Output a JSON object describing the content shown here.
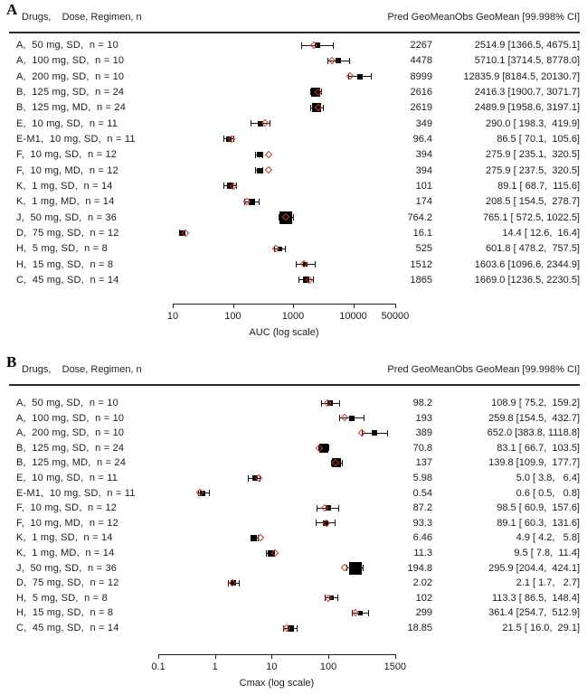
{
  "figure": {
    "background": "#ffffff",
    "text_color": "#1b1b1b",
    "marker_black": "#000000",
    "accent_red": "#c0392b"
  },
  "chart_data": [
    {
      "type": "scatter",
      "subtype": "forest-plot",
      "panel_label": "A",
      "header": {
        "left": "Drugs,    Dose, Regimen, n",
        "pred": "Pred GeoMean",
        "obs": "Obs GeoMean [99.998% CI]"
      },
      "xlabel": "AUC (log scale)",
      "xscale": "log",
      "xlim": [
        10,
        50000
      ],
      "ticks": [
        10,
        100,
        1000,
        10000,
        50000
      ],
      "tick_labels": [
        "10",
        "100",
        "1000",
        "10000",
        "50000"
      ],
      "legend": {
        "black_square": "Obs GeoMean with 99.998% CI",
        "red_diamond": "Pred GeoMean"
      },
      "marker_px_by_n": {
        "8": 5,
        "10": 6,
        "11": 6,
        "12": 6,
        "14": 7,
        "24": 10,
        "36": 14
      },
      "rows": [
        {
          "label": "A,  50 mg, SD,  n = 10",
          "n": 10,
          "pred": 2267,
          "pred_text": "2267",
          "obs": 2514.9,
          "lo": 1366.5,
          "hi": 4675.1,
          "obs_text": "2514.9 [1366.5, 4675.1]"
        },
        {
          "label": "A,  100 mg, SD,  n = 10",
          "n": 10,
          "pred": 4478,
          "pred_text": "4478",
          "obs": 5710.1,
          "lo": 3714.5,
          "hi": 8778.0,
          "obs_text": "5710.1 [3714.5, 8778.0]"
        },
        {
          "label": "A,  200 mg, SD,  n = 10",
          "n": 10,
          "pred": 8999,
          "pred_text": "8999",
          "obs": 12835.9,
          "lo": 8184.5,
          "hi": 20130.7,
          "obs_text": "12835.9 [8184.5, 20130.7]"
        },
        {
          "label": "B,  125 mg, SD,  n = 24",
          "n": 24,
          "pred": 2616,
          "pred_text": "2616",
          "obs": 2416.3,
          "lo": 1900.7,
          "hi": 3071.7,
          "obs_text": "2416.3 [1900.7, 3071.7]"
        },
        {
          "label": "B,  125 mg, MD,  n = 24",
          "n": 24,
          "pred": 2619,
          "pred_text": "2619",
          "obs": 2489.9,
          "lo": 1958.6,
          "hi": 3197.1,
          "obs_text": "2489.9 [1958.6, 3197.1]"
        },
        {
          "label": "E,  10 mg, SD,  n = 11",
          "n": 11,
          "pred": 349,
          "pred_text": "349",
          "obs": 290.0,
          "lo": 198.3,
          "hi": 419.9,
          "obs_text": "290.0 [ 198.3,  419.9]"
        },
        {
          "label": "E-M1,  10 mg, SD,  n = 11",
          "n": 11,
          "pred": 96.4,
          "pred_text": "96.4",
          "obs": 86.5,
          "lo": 70.1,
          "hi": 105.6,
          "obs_text": "86.5 [ 70.1,  105.6]"
        },
        {
          "label": "F,  10 mg, SD,  n = 12",
          "n": 12,
          "pred": 394,
          "pred_text": "394",
          "obs": 275.9,
          "lo": 235.1,
          "hi": 320.5,
          "obs_text": "275.9 [ 235.1,  320.5]"
        },
        {
          "label": "F,  10 mg, MD,  n = 12",
          "n": 12,
          "pred": 394,
          "pred_text": "394",
          "obs": 275.9,
          "lo": 237.5,
          "hi": 320.5,
          "obs_text": "275.9 [ 237.5,  320.5]"
        },
        {
          "label": "K,  1 mg, SD,  n = 14",
          "n": 14,
          "pred": 101,
          "pred_text": "101",
          "obs": 89.1,
          "lo": 68.7,
          "hi": 115.6,
          "obs_text": "89.1 [ 68.7,  115.6]"
        },
        {
          "label": "K,  1 mg, MD,  n = 14",
          "n": 14,
          "pred": 174,
          "pred_text": "174",
          "obs": 208.5,
          "lo": 154.5,
          "hi": 278.7,
          "obs_text": "208.5 [ 154.5,  278.7]"
        },
        {
          "label": "J,  50 mg, SD,  n = 36",
          "n": 36,
          "pred": 764.2,
          "pred_text": "764.2",
          "obs": 765.1,
          "lo": 572.5,
          "hi": 1022.5,
          "obs_text": "765.1 [ 572.5, 1022.5]"
        },
        {
          "label": "D,  75 mg, SD,  n = 12",
          "n": 12,
          "pred": 16.1,
          "pred_text": "16.1",
          "obs": 14.4,
          "lo": 12.6,
          "hi": 16.4,
          "obs_text": "14.4 [ 12.6,  16.4]"
        },
        {
          "label": "H,  5 mg, SD,  n = 8",
          "n": 8,
          "pred": 525,
          "pred_text": "525",
          "obs": 601.8,
          "lo": 478.2,
          "hi": 757.5,
          "obs_text": "601.8 [ 478.2,  757.5]"
        },
        {
          "label": "H,  15 mg, SD,  n = 8",
          "n": 8,
          "pred": 1512,
          "pred_text": "1512",
          "obs": 1603.6,
          "lo": 1096.6,
          "hi": 2344.9,
          "obs_text": "1603.6 [1096.6, 2344.9]"
        },
        {
          "label": "C,  45 mg, SD,  n = 14",
          "n": 14,
          "pred": 1865,
          "pred_text": "1865",
          "obs": 1669.0,
          "lo": 1236.5,
          "hi": 2230.5,
          "obs_text": "1669.0 [1236.5, 2230.5]"
        }
      ]
    },
    {
      "type": "scatter",
      "subtype": "forest-plot",
      "panel_label": "B",
      "header": {
        "left": "Drugs,    Dose, Regimen, n",
        "pred": "Pred GeoMean",
        "obs": "Obs GeoMean [99.998% CI]"
      },
      "xlabel": "Cmax (log scale)",
      "xscale": "log",
      "xlim": [
        0.1,
        1500
      ],
      "ticks": [
        0.1,
        1,
        10,
        100,
        1500
      ],
      "tick_labels": [
        "0.1",
        "1",
        "10",
        "100",
        "1500"
      ],
      "legend": {
        "black_square": "Obs GeoMean with 99.998% CI",
        "red_diamond": "Pred GeoMean"
      },
      "marker_px_by_n": {
        "8": 5,
        "10": 6,
        "11": 6,
        "12": 6,
        "14": 7,
        "24": 10,
        "36": 14
      },
      "rows": [
        {
          "label": "A,  50 mg, SD,  n = 10",
          "n": 10,
          "pred": 98.2,
          "pred_text": "98.2",
          "obs": 108.9,
          "lo": 75.2,
          "hi": 159.2,
          "obs_text": "108.9 [ 75.2,  159.2]"
        },
        {
          "label": "A,  100 mg, SD,  n = 10",
          "n": 10,
          "pred": 193,
          "pred_text": "193",
          "obs": 259.8,
          "lo": 154.5,
          "hi": 432.7,
          "obs_text": "259.8 [154.5,  432.7]"
        },
        {
          "label": "A,  200 mg, SD,  n = 10",
          "n": 10,
          "pred": 389,
          "pred_text": "389",
          "obs": 652.0,
          "lo": 383.8,
          "hi": 1118.8,
          "obs_text": "652.0 [383.8, 1118.8]"
        },
        {
          "label": "B,  125 mg, SD,  n = 24",
          "n": 24,
          "pred": 70.8,
          "pred_text": "70.8",
          "obs": 83.1,
          "lo": 66.7,
          "hi": 103.5,
          "obs_text": "83.1 [ 66.7,  103.5]"
        },
        {
          "label": "B,  125 mg, MD,  n = 24",
          "n": 24,
          "pred": 137,
          "pred_text": "137",
          "obs": 139.8,
          "lo": 109.9,
          "hi": 177.7,
          "obs_text": "139.8 [109.9,  177.7]"
        },
        {
          "label": "E,  10 mg, SD,  n = 11",
          "n": 11,
          "pred": 5.98,
          "pred_text": "5.98",
          "obs": 5.0,
          "lo": 3.8,
          "hi": 6.4,
          "obs_text": "5.0 [ 3.8,   6.4]"
        },
        {
          "label": "E-M1,  10 mg, SD,  n = 11",
          "n": 11,
          "pred": 0.54,
          "pred_text": "0.54",
          "obs": 0.6,
          "lo": 0.5,
          "hi": 0.8,
          "obs_text": "0.6 [ 0.5,   0.8]"
        },
        {
          "label": "F,  10 mg, SD,  n = 12",
          "n": 12,
          "pred": 87.2,
          "pred_text": "87.2",
          "obs": 98.5,
          "lo": 60.9,
          "hi": 157.6,
          "obs_text": "98.5 [ 60.9,  157.6]"
        },
        {
          "label": "F,  10 mg, MD,  n = 12",
          "n": 12,
          "pred": 93.3,
          "pred_text": "93.3",
          "obs": 89.1,
          "lo": 60.3,
          "hi": 131.6,
          "obs_text": "89.1 [ 60.3,  131.6]"
        },
        {
          "label": "K,  1 mg, SD,  n = 14",
          "n": 14,
          "pred": 6.46,
          "pred_text": "6.46",
          "obs": 4.9,
          "lo": 4.2,
          "hi": 5.8,
          "obs_text": "4.9 [ 4.2,   5.8]"
        },
        {
          "label": "K,  1 mg, MD,  n = 14",
          "n": 14,
          "pred": 11.3,
          "pred_text": "11.3",
          "obs": 9.5,
          "lo": 7.8,
          "hi": 11.4,
          "obs_text": "9.5 [ 7.8,  11.4]"
        },
        {
          "label": "J,  50 mg, SD,  n = 36",
          "n": 36,
          "pred": 194.8,
          "pred_text": "194.8",
          "obs": 295.9,
          "lo": 204.4,
          "hi": 424.1,
          "obs_text": "295.9 [204.4,  424.1]"
        },
        {
          "label": "D,  75 mg, SD,  n = 12",
          "n": 12,
          "pred": 2.02,
          "pred_text": "2.02",
          "obs": 2.1,
          "lo": 1.7,
          "hi": 2.7,
          "obs_text": "2.1 [ 1.7,   2.7]"
        },
        {
          "label": "H,  5 mg, SD,  n = 8",
          "n": 8,
          "pred": 102,
          "pred_text": "102",
          "obs": 113.3,
          "lo": 86.5,
          "hi": 148.4,
          "obs_text": "113.3 [ 86.5,  148.4]"
        },
        {
          "label": "H,  15 mg, SD,  n = 8",
          "n": 8,
          "pred": 299,
          "pred_text": "299",
          "obs": 361.4,
          "lo": 254.7,
          "hi": 512.9,
          "obs_text": "361.4 [254.7,  512.9]"
        },
        {
          "label": "C,  45 mg, SD,  n = 14",
          "n": 14,
          "pred": 18.85,
          "pred_text": "18.85",
          "obs": 21.5,
          "lo": 16.0,
          "hi": 29.1,
          "obs_text": "21.5 [ 16.0,  29.1]"
        }
      ]
    }
  ]
}
